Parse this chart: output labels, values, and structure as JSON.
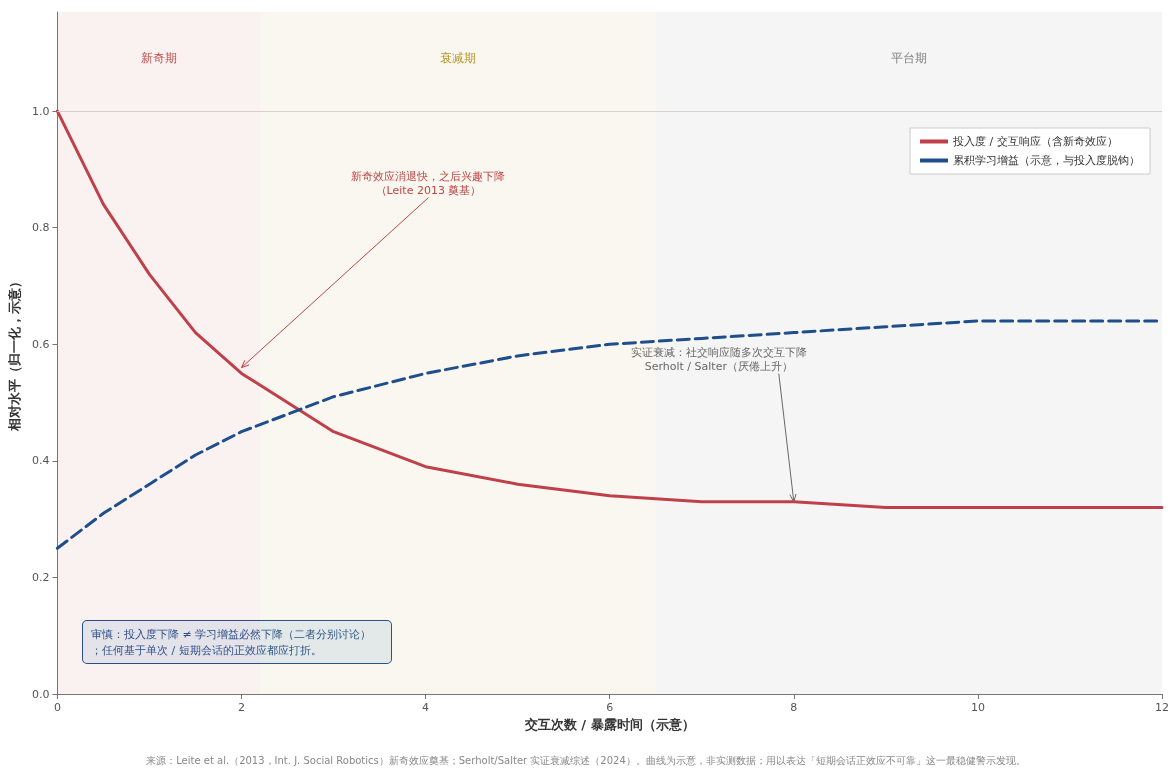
{
  "chart_data": {
    "type": "line",
    "xlabel": "交互次数 / 暴露时间（示意）",
    "ylabel": "相对水平（归一化，示意）",
    "x": [
      0,
      0.5,
      1,
      1.5,
      2,
      2.5,
      3,
      4,
      5,
      6,
      7,
      8,
      9,
      10,
      11,
      12
    ],
    "series": [
      {
        "name": "投入度 / 交互响应（含新奇效应）",
        "color": "#c0404a",
        "line_style": "solid",
        "values": [
          1.0,
          0.84,
          0.72,
          0.62,
          0.55,
          0.5,
          0.45,
          0.39,
          0.36,
          0.34,
          0.33,
          0.33,
          0.32,
          0.32,
          0.32,
          0.32
        ]
      },
      {
        "name": "累积学习增益（示意，与投入度脱钩）",
        "color": "#1f4e8c",
        "line_style": "dashed",
        "values": [
          0.25,
          0.31,
          0.36,
          0.41,
          0.45,
          0.48,
          0.51,
          0.55,
          0.58,
          0.6,
          0.61,
          0.62,
          0.63,
          0.64,
          0.64,
          0.64
        ]
      }
    ],
    "xlim": [
      0,
      12
    ],
    "xticks": [
      0,
      2,
      4,
      6,
      8,
      10,
      12
    ],
    "ylim": [
      0,
      1.17
    ],
    "yticks": [
      {
        "value": 0,
        "label": "0.0"
      },
      0.2,
      0.4,
      0.6,
      0.8,
      {
        "value": 1,
        "label": "1.0"
      }
    ],
    "bands": [
      {
        "axis": "x",
        "from": 0,
        "to": 2.2,
        "label": "新奇期",
        "color": "#c0504d"
      },
      {
        "axis": "x",
        "from": 2.2,
        "to": 6.5,
        "label": "衰减期",
        "color": "#b8962e"
      },
      {
        "axis": "x",
        "from": 6.5,
        "to": 12,
        "label": "平台期",
        "color": "#808080"
      }
    ],
    "ref_lines": [
      {
        "axis": "y",
        "value": 1.0,
        "color": "#d8cfc8"
      }
    ],
    "annotations": [
      {
        "text": "新奇效应消退快，之后兴趣下降（Leite 2013 奠基）",
        "x": 2,
        "y": 0.56
      },
      {
        "text": "实证衰减：社交响应随多次交互下降\nSerholt / Salter（厌倦上升）",
        "x": 8,
        "y": 0.33
      },
      "审慎：投入度下降 ≠ 学习增益必然下降（二者分别讨论）；任何基于单次 / 短期会话的正效应都应打折。",
      "来源：Leite et al.（2013，Int. J. Social Robotics）新奇效应奠基；Serholt/Salter 实证衰减综述（2024）。曲线为示意，非实测数据；用以表达「短期会话正效应不可靠」这一最稳健警示发现。"
    ],
    "legend": "top right",
    "grid": false,
    "marker": "none"
  }
}
